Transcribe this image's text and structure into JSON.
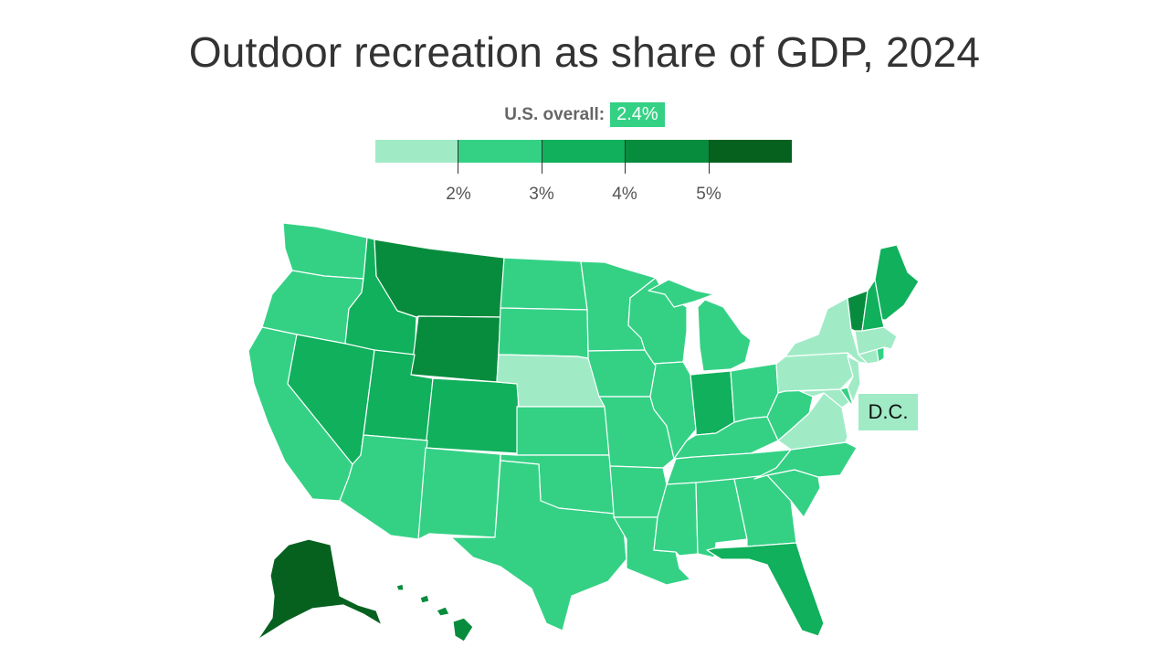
{
  "title": "Outdoor recreation as share of GDP, 2024",
  "us_overall": {
    "label": "U.S. overall:",
    "value": "2.4%",
    "color": "#34d185"
  },
  "legend": {
    "bins": [
      {
        "range": [
          1,
          2
        ],
        "color": "#a0ebc6"
      },
      {
        "range": [
          2,
          3
        ],
        "color": "#34d185"
      },
      {
        "range": [
          3,
          4
        ],
        "color": "#10b05c"
      },
      {
        "range": [
          4,
          5
        ],
        "color": "#078c3d"
      },
      {
        "range": [
          5,
          6
        ],
        "color": "#06611f"
      }
    ],
    "tick_labels": [
      "2%",
      "3%",
      "4%",
      "5%"
    ]
  },
  "dc_label": "D.C.",
  "state_bins": {
    "washington": 1,
    "oregon": 1,
    "california": 1,
    "idaho": 2,
    "nevada": 2,
    "montana": 3,
    "wyoming": 3,
    "utah": 2,
    "arizona": 1,
    "colorado": 2,
    "new-mexico": 1,
    "north-dakota": 1,
    "south-dakota": 1,
    "nebraska": 0,
    "kansas": 1,
    "oklahoma": 1,
    "texas": 1,
    "minnesota": 1,
    "iowa": 1,
    "missouri": 1,
    "arkansas": 1,
    "louisiana": 1,
    "wisconsin": 1,
    "illinois": 1,
    "michigan": 1,
    "indiana": 2,
    "ohio": 1,
    "kentucky": 1,
    "tennessee": 1,
    "mississippi": 1,
    "alabama": 1,
    "georgia": 1,
    "florida": 2,
    "south-carolina": 1,
    "north-carolina": 1,
    "virginia": 0,
    "west-virginia": 1,
    "pennsylvania": 0,
    "new-york": 0,
    "maryland": 0,
    "delaware": 1,
    "new-jersey": 0,
    "connecticut": 0,
    "rhode-island": 1,
    "massachusetts": 0,
    "vermont": 3,
    "new-hampshire": 2,
    "maine": 2,
    "alaska": 4,
    "hawaii": 3,
    "dc": 0
  }
}
